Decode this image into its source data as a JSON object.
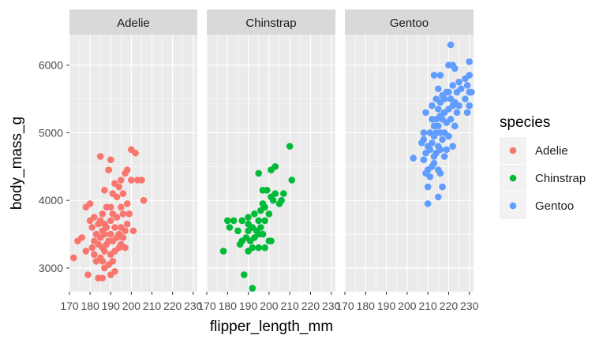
{
  "chart_data": {
    "type": "scatter",
    "xlabel": "flipper_length_mm",
    "ylabel": "body_mass_g",
    "xlim": [
      170,
      232
    ],
    "ylim": [
      2650,
      6450
    ],
    "x_ticks": [
      170,
      180,
      190,
      200,
      210,
      220,
      230
    ],
    "y_ticks": [
      3000,
      4000,
      5000,
      6000
    ],
    "grid": true,
    "legend": {
      "title": "species",
      "placement": "right",
      "entries": [
        {
          "label": "Adelie",
          "color": "#F8766D"
        },
        {
          "label": "Chinstrap",
          "color": "#00BA38"
        },
        {
          "label": "Gentoo",
          "color": "#619CFF"
        }
      ]
    },
    "facets": [
      {
        "label": "Adelie",
        "color": "#F8766D",
        "points": [
          [
            172,
            3150
          ],
          [
            174,
            3400
          ],
          [
            176,
            3450
          ],
          [
            178,
            3250
          ],
          [
            178,
            3900
          ],
          [
            179,
            2900
          ],
          [
            180,
            3700
          ],
          [
            180,
            3950
          ],
          [
            181,
            3300
          ],
          [
            181,
            3600
          ],
          [
            182,
            3200
          ],
          [
            182,
            3400
          ],
          [
            182,
            3750
          ],
          [
            183,
            3100
          ],
          [
            183,
            3500
          ],
          [
            184,
            2850
          ],
          [
            184,
            3350
          ],
          [
            184,
            3650
          ],
          [
            185,
            3150
          ],
          [
            185,
            3450
          ],
          [
            185,
            3700
          ],
          [
            185,
            4650
          ],
          [
            186,
            2850
          ],
          [
            186,
            3100
          ],
          [
            186,
            3300
          ],
          [
            186,
            3550
          ],
          [
            186,
            3800
          ],
          [
            187,
            3000
          ],
          [
            187,
            3250
          ],
          [
            187,
            3500
          ],
          [
            187,
            3650
          ],
          [
            187,
            4150
          ],
          [
            188,
            3350
          ],
          [
            188,
            3600
          ],
          [
            188,
            3900
          ],
          [
            189,
            3050
          ],
          [
            189,
            3400
          ],
          [
            189,
            4450
          ],
          [
            190,
            2900
          ],
          [
            190,
            3200
          ],
          [
            190,
            3500
          ],
          [
            190,
            3700
          ],
          [
            190,
            3900
          ],
          [
            190,
            4600
          ],
          [
            191,
            3100
          ],
          [
            191,
            3400
          ],
          [
            191,
            3800
          ],
          [
            191,
            4100
          ],
          [
            192,
            2950
          ],
          [
            192,
            3250
          ],
          [
            192,
            3600
          ],
          [
            192,
            4250
          ],
          [
            193,
            3450
          ],
          [
            193,
            3750
          ],
          [
            193,
            4050
          ],
          [
            194,
            3300
          ],
          [
            194,
            3500
          ],
          [
            194,
            4200
          ],
          [
            195,
            3350
          ],
          [
            195,
            3600
          ],
          [
            195,
            3900
          ],
          [
            195,
            4300
          ],
          [
            196,
            3450
          ],
          [
            196,
            3800
          ],
          [
            196,
            4100
          ],
          [
            197,
            3300
          ],
          [
            197,
            3550
          ],
          [
            197,
            4400
          ],
          [
            198,
            3650
          ],
          [
            198,
            3950
          ],
          [
            198,
            4450
          ],
          [
            199,
            3800
          ],
          [
            200,
            4300
          ],
          [
            200,
            4750
          ],
          [
            201,
            3550
          ],
          [
            202,
            4700
          ],
          [
            203,
            4300
          ],
          [
            205,
            4300
          ],
          [
            206,
            4000
          ]
        ]
      },
      {
        "label": "Chinstrap",
        "color": "#00BA38",
        "points": [
          [
            178,
            3250
          ],
          [
            180,
            3700
          ],
          [
            181,
            3600
          ],
          [
            183,
            3700
          ],
          [
            185,
            3550
          ],
          [
            186,
            3350
          ],
          [
            187,
            3400
          ],
          [
            187,
            3700
          ],
          [
            188,
            2900
          ],
          [
            189,
            3450
          ],
          [
            190,
            3250
          ],
          [
            190,
            3550
          ],
          [
            190,
            3650
          ],
          [
            190,
            3750
          ],
          [
            191,
            3400
          ],
          [
            192,
            2700
          ],
          [
            192,
            3300
          ],
          [
            192,
            3600
          ],
          [
            193,
            3450
          ],
          [
            193,
            3800
          ],
          [
            194,
            3550
          ],
          [
            195,
            3300
          ],
          [
            195,
            3500
          ],
          [
            195,
            3700
          ],
          [
            195,
            4400
          ],
          [
            196,
            3600
          ],
          [
            196,
            3850
          ],
          [
            197,
            3500
          ],
          [
            197,
            3950
          ],
          [
            197,
            4150
          ],
          [
            198,
            3300
          ],
          [
            198,
            3700
          ],
          [
            198,
            3900
          ],
          [
            199,
            4150
          ],
          [
            200,
            3400
          ],
          [
            200,
            3800
          ],
          [
            201,
            3400
          ],
          [
            201,
            4050
          ],
          [
            201,
            4450
          ],
          [
            202,
            4000
          ],
          [
            203,
            4100
          ],
          [
            203,
            4500
          ],
          [
            205,
            3950
          ],
          [
            206,
            4000
          ],
          [
            207,
            4100
          ],
          [
            210,
            4800
          ],
          [
            211,
            4300
          ]
        ]
      },
      {
        "label": "Gentoo",
        "color": "#619CFF",
        "points": [
          [
            203,
            4625
          ],
          [
            207,
            4850
          ],
          [
            208,
            4600
          ],
          [
            208,
            4900
          ],
          [
            208,
            5000
          ],
          [
            209,
            4400
          ],
          [
            209,
            4700
          ],
          [
            209,
            5300
          ],
          [
            210,
            3950
          ],
          [
            210,
            4200
          ],
          [
            210,
            4450
          ],
          [
            210,
            4800
          ],
          [
            211,
            4350
          ],
          [
            211,
            4750
          ],
          [
            211,
            5000
          ],
          [
            212,
            4500
          ],
          [
            212,
            4850
          ],
          [
            212,
            5200
          ],
          [
            212,
            5400
          ],
          [
            213,
            4550
          ],
          [
            213,
            4650
          ],
          [
            213,
            4950
          ],
          [
            213,
            5100
          ],
          [
            213,
            5850
          ],
          [
            214,
            4700
          ],
          [
            214,
            5000
          ],
          [
            214,
            5200
          ],
          [
            214,
            5500
          ],
          [
            215,
            4050
          ],
          [
            215,
            4450
          ],
          [
            215,
            4800
          ],
          [
            215,
            5100
          ],
          [
            215,
            5350
          ],
          [
            215,
            5650
          ],
          [
            216,
            4400
          ],
          [
            216,
            4750
          ],
          [
            216,
            5000
          ],
          [
            216,
            5250
          ],
          [
            216,
            5450
          ],
          [
            216,
            5850
          ],
          [
            217,
            4200
          ],
          [
            217,
            4900
          ],
          [
            217,
            5200
          ],
          [
            217,
            5550
          ],
          [
            218,
            4650
          ],
          [
            218,
            5000
          ],
          [
            218,
            5300
          ],
          [
            218,
            5500
          ],
          [
            219,
            4750
          ],
          [
            219,
            5150
          ],
          [
            219,
            5600
          ],
          [
            220,
            4950
          ],
          [
            220,
            5350
          ],
          [
            220,
            5600
          ],
          [
            220,
            6000
          ],
          [
            221,
            5200
          ],
          [
            221,
            5500
          ],
          [
            221,
            6300
          ],
          [
            222,
            4800
          ],
          [
            222,
            5400
          ],
          [
            222,
            5700
          ],
          [
            222,
            6000
          ],
          [
            223,
            5100
          ],
          [
            223,
            5450
          ],
          [
            223,
            5950
          ],
          [
            224,
            5300
          ],
          [
            224,
            5600
          ],
          [
            225,
            5400
          ],
          [
            225,
            5750
          ],
          [
            226,
            5650
          ],
          [
            228,
            5500
          ],
          [
            228,
            5800
          ],
          [
            229,
            5300
          ],
          [
            229,
            5700
          ],
          [
            230,
            5400
          ],
          [
            230,
            5600
          ],
          [
            230,
            5850
          ],
          [
            230,
            6050
          ],
          [
            231,
            5600
          ]
        ]
      }
    ]
  }
}
